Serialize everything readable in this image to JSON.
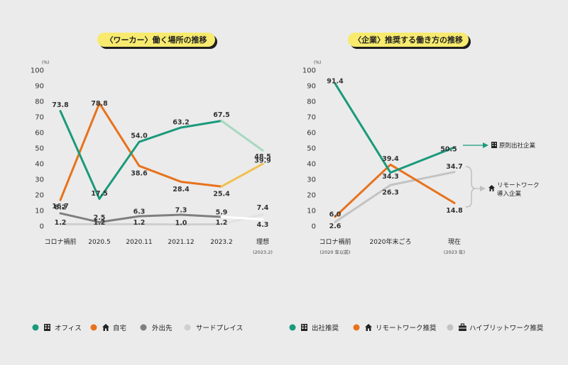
{
  "chart_data": [
    {
      "type": "line",
      "title": "〈ワーカー〉働く場所の推移",
      "unit": "(%)",
      "ylim": [
        0,
        100
      ],
      "y_ticks": [
        "0",
        "10",
        "20",
        "30",
        "40",
        "50",
        "60",
        "70",
        "80",
        "90",
        "100"
      ],
      "categories": [
        "コロナ禍前",
        "2020.5",
        "2020.11",
        "2021.12",
        "2023.2",
        "理想"
      ],
      "category_sub": [
        "",
        "",
        "",
        "",
        "",
        "(2023.2)"
      ],
      "series": [
        {
          "name": "オフィス",
          "color": "#1a9a7c",
          "ideal_color": "#a8d8c0",
          "icon": "building-icon",
          "values": [
            73.8,
            17.5,
            54.0,
            63.2,
            67.5,
            48.5
          ],
          "labels": [
            "73.8",
            "17.5",
            "54.0",
            "63.2",
            "67.5",
            "48.5"
          ]
        },
        {
          "name": "自宅",
          "color": "#e8721c",
          "ideal_color": "#f2c050",
          "icon": "home-icon",
          "values": [
            16.7,
            78.8,
            38.6,
            28.4,
            25.4,
            39.9
          ],
          "labels": [
            "16.7",
            "78.8",
            "38.6",
            "28.4",
            "25.4",
            "39.9"
          ]
        },
        {
          "name": "外出先",
          "color": "#7f7f7f",
          "ideal_color": "#ffffff",
          "icon": "",
          "values": [
            8.2,
            2.5,
            6.3,
            7.3,
            5.9,
            4.3
          ],
          "labels": [
            "8.2",
            "2.5",
            "6.3",
            "7.3",
            "5.9",
            "4.3"
          ]
        },
        {
          "name": "サードプレイス",
          "color": "#cfcfcf",
          "ideal_color": "#e2e2e2",
          "icon": "",
          "values": [
            1.2,
            1.2,
            1.2,
            1.0,
            1.2,
            7.4
          ],
          "labels": [
            "1.2",
            "1.2",
            "1.2",
            "1.0",
            "1.2",
            "7.4"
          ]
        }
      ]
    },
    {
      "type": "line",
      "title": "〈企業〉推奨する働き方の推移",
      "unit": "(%)",
      "ylim": [
        0,
        100
      ],
      "y_ticks": [
        "0",
        "10",
        "20",
        "30",
        "40",
        "50",
        "60",
        "70",
        "80",
        "90",
        "100"
      ],
      "categories": [
        "コロナ禍前",
        "2020年末ごろ",
        "現在"
      ],
      "category_sub": [
        "(2020 年以前)",
        "",
        "(2023 年)"
      ],
      "series": [
        {
          "name": "出社推奨",
          "color": "#1a9a7c",
          "icon": "building-icon",
          "values": [
            91.4,
            34.3,
            50.5
          ],
          "labels": [
            "91.4",
            "34.3",
            "50.5"
          ]
        },
        {
          "name": "リモートワーク推奨",
          "color": "#e8721c",
          "icon": "home-icon",
          "values": [
            6.0,
            39.4,
            14.8
          ],
          "labels": [
            "6.0",
            "39.4",
            "14.8"
          ]
        },
        {
          "name": "ハイブリットワーク推奨",
          "color": "#c3c3c3",
          "icon": "briefcase-icon",
          "values": [
            2.6,
            26.3,
            34.7
          ],
          "labels": [
            "2.6",
            "26.3",
            "34.7"
          ]
        }
      ],
      "annotations": {
        "office": "原則出社企業",
        "remote_line1": "リモートワーク",
        "remote_line2": "導入企業"
      }
    }
  ]
}
